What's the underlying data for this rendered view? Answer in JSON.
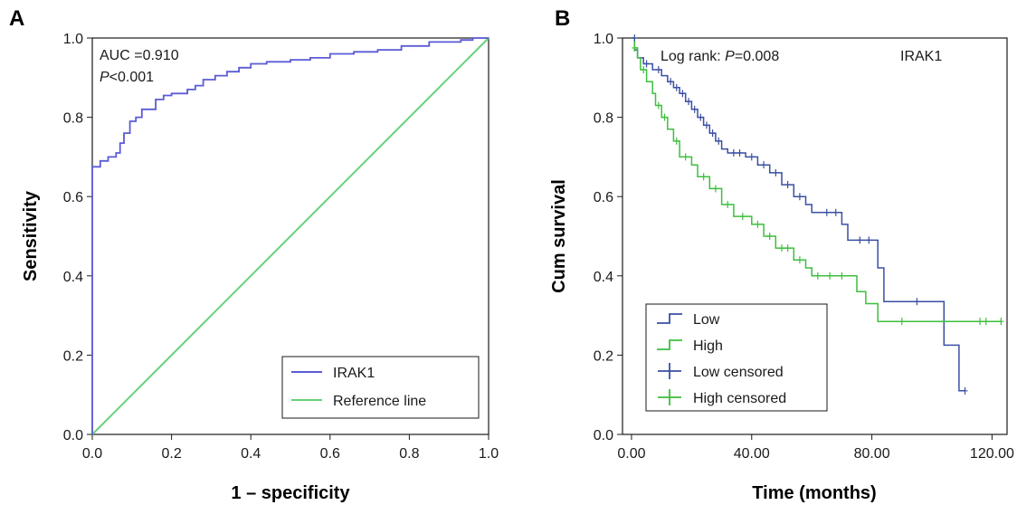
{
  "chart_data": [
    {
      "type": "line",
      "panel_label": "A",
      "xlabel": "1 – specificity",
      "ylabel": "Sensitivity",
      "xlim": [
        0,
        1
      ],
      "ylim": [
        0,
        1
      ],
      "xticks": [
        "0.0",
        "0.2",
        "0.4",
        "0.6",
        "0.8",
        "1.0"
      ],
      "yticks": [
        "0.0",
        "0.2",
        "0.4",
        "0.6",
        "0.8",
        "1.0"
      ],
      "annotations": {
        "auc": "AUC =0.910",
        "p_italic": "P",
        "p_rest": "<0.001"
      },
      "legend_position": "bottom-right",
      "series": [
        {
          "name": "IRAK1",
          "color": "#5b5bd6",
          "step": true,
          "points": [
            [
              0,
              0
            ],
            [
              0,
              0.675
            ],
            [
              0.02,
              0.675
            ],
            [
              0.02,
              0.69
            ],
            [
              0.04,
              0.69
            ],
            [
              0.04,
              0.7
            ],
            [
              0.06,
              0.7
            ],
            [
              0.06,
              0.71
            ],
            [
              0.07,
              0.71
            ],
            [
              0.07,
              0.735
            ],
            [
              0.08,
              0.735
            ],
            [
              0.08,
              0.76
            ],
            [
              0.095,
              0.76
            ],
            [
              0.095,
              0.79
            ],
            [
              0.11,
              0.79
            ],
            [
              0.11,
              0.8
            ],
            [
              0.125,
              0.8
            ],
            [
              0.125,
              0.82
            ],
            [
              0.16,
              0.82
            ],
            [
              0.16,
              0.845
            ],
            [
              0.18,
              0.845
            ],
            [
              0.18,
              0.855
            ],
            [
              0.2,
              0.855
            ],
            [
              0.2,
              0.86
            ],
            [
              0.24,
              0.86
            ],
            [
              0.24,
              0.87
            ],
            [
              0.26,
              0.87
            ],
            [
              0.26,
              0.88
            ],
            [
              0.28,
              0.88
            ],
            [
              0.28,
              0.895
            ],
            [
              0.31,
              0.895
            ],
            [
              0.31,
              0.905
            ],
            [
              0.34,
              0.905
            ],
            [
              0.34,
              0.915
            ],
            [
              0.37,
              0.915
            ],
            [
              0.37,
              0.925
            ],
            [
              0.4,
              0.925
            ],
            [
              0.4,
              0.935
            ],
            [
              0.44,
              0.935
            ],
            [
              0.44,
              0.94
            ],
            [
              0.5,
              0.94
            ],
            [
              0.5,
              0.945
            ],
            [
              0.55,
              0.945
            ],
            [
              0.55,
              0.95
            ],
            [
              0.6,
              0.95
            ],
            [
              0.6,
              0.96
            ],
            [
              0.66,
              0.96
            ],
            [
              0.66,
              0.965
            ],
            [
              0.72,
              0.965
            ],
            [
              0.72,
              0.97
            ],
            [
              0.78,
              0.97
            ],
            [
              0.78,
              0.98
            ],
            [
              0.85,
              0.98
            ],
            [
              0.85,
              0.99
            ],
            [
              0.93,
              0.99
            ],
            [
              0.93,
              0.995
            ],
            [
              0.96,
              0.995
            ],
            [
              0.96,
              1.0
            ],
            [
              1.0,
              1.0
            ]
          ]
        },
        {
          "name": "Reference line",
          "color": "#66d17a",
          "step": false,
          "points": [
            [
              0,
              0
            ],
            [
              1,
              1
            ]
          ]
        }
      ]
    },
    {
      "type": "line",
      "panel_label": "B",
      "xlabel": "Time (months)",
      "ylabel": "Cum survival",
      "xlim": [
        -3,
        125
      ],
      "ylim": [
        0,
        1
      ],
      "xticks": [
        {
          "value": 0,
          "label": "0.00"
        },
        {
          "value": 40,
          "label": "40.00"
        },
        {
          "value": 80,
          "label": "80.00"
        },
        {
          "value": 120,
          "label": "120.00"
        }
      ],
      "yticks": [
        "0.0",
        "0.2",
        "0.4",
        "0.6",
        "0.8",
        "1.0"
      ],
      "annotations": {
        "logrank_prefix": "Log rank: ",
        "p_italic": "P",
        "p_rest": "=0.008",
        "gene": "IRAK1"
      },
      "legend_position": "bottom-left",
      "legend": [
        "Low",
        "High",
        "Low censored",
        "High censored"
      ],
      "series": [
        {
          "name": "Low",
          "color": "#3b4fa3",
          "step": true,
          "points": [
            [
              0,
              1.0
            ],
            [
              1,
              1.0
            ],
            [
              1,
              0.97
            ],
            [
              2,
              0.97
            ],
            [
              2,
              0.95
            ],
            [
              4,
              0.95
            ],
            [
              4,
              0.935
            ],
            [
              7,
              0.935
            ],
            [
              7,
              0.92
            ],
            [
              10,
              0.92
            ],
            [
              10,
              0.905
            ],
            [
              12,
              0.905
            ],
            [
              12,
              0.89
            ],
            [
              14,
              0.89
            ],
            [
              14,
              0.875
            ],
            [
              16,
              0.875
            ],
            [
              16,
              0.86
            ],
            [
              18,
              0.86
            ],
            [
              18,
              0.84
            ],
            [
              20,
              0.84
            ],
            [
              20,
              0.82
            ],
            [
              22,
              0.82
            ],
            [
              22,
              0.8
            ],
            [
              24,
              0.8
            ],
            [
              24,
              0.78
            ],
            [
              26,
              0.78
            ],
            [
              26,
              0.76
            ],
            [
              28,
              0.76
            ],
            [
              28,
              0.74
            ],
            [
              30,
              0.74
            ],
            [
              30,
              0.72
            ],
            [
              32,
              0.72
            ],
            [
              32,
              0.71
            ],
            [
              38,
              0.71
            ],
            [
              38,
              0.7
            ],
            [
              42,
              0.7
            ],
            [
              42,
              0.68
            ],
            [
              46,
              0.68
            ],
            [
              46,
              0.66
            ],
            [
              50,
              0.66
            ],
            [
              50,
              0.63
            ],
            [
              54,
              0.63
            ],
            [
              54,
              0.6
            ],
            [
              58,
              0.6
            ],
            [
              58,
              0.58
            ],
            [
              60,
              0.58
            ],
            [
              60,
              0.56
            ],
            [
              70,
              0.56
            ],
            [
              70,
              0.53
            ],
            [
              72,
              0.53
            ],
            [
              72,
              0.49
            ],
            [
              82,
              0.49
            ],
            [
              82,
              0.42
            ],
            [
              84,
              0.42
            ],
            [
              84,
              0.335
            ],
            [
              104,
              0.335
            ],
            [
              104,
              0.225
            ],
            [
              109,
              0.225
            ],
            [
              109,
              0.11
            ],
            [
              111,
              0.11
            ]
          ]
        },
        {
          "name": "High",
          "color": "#3dbf3d",
          "step": true,
          "points": [
            [
              0,
              1.0
            ],
            [
              1,
              1.0
            ],
            [
              1,
              0.975
            ],
            [
              2,
              0.975
            ],
            [
              2,
              0.95
            ],
            [
              3,
              0.95
            ],
            [
              3,
              0.92
            ],
            [
              5,
              0.92
            ],
            [
              5,
              0.89
            ],
            [
              7,
              0.89
            ],
            [
              7,
              0.86
            ],
            [
              8,
              0.86
            ],
            [
              8,
              0.83
            ],
            [
              10,
              0.83
            ],
            [
              10,
              0.8
            ],
            [
              12,
              0.8
            ],
            [
              12,
              0.77
            ],
            [
              14,
              0.77
            ],
            [
              14,
              0.74
            ],
            [
              16,
              0.74
            ],
            [
              16,
              0.7
            ],
            [
              20,
              0.7
            ],
            [
              20,
              0.68
            ],
            [
              22,
              0.68
            ],
            [
              22,
              0.65
            ],
            [
              26,
              0.65
            ],
            [
              26,
              0.62
            ],
            [
              30,
              0.62
            ],
            [
              30,
              0.58
            ],
            [
              34,
              0.58
            ],
            [
              34,
              0.55
            ],
            [
              40,
              0.55
            ],
            [
              40,
              0.53
            ],
            [
              44,
              0.53
            ],
            [
              44,
              0.5
            ],
            [
              48,
              0.5
            ],
            [
              48,
              0.47
            ],
            [
              54,
              0.47
            ],
            [
              54,
              0.44
            ],
            [
              58,
              0.44
            ],
            [
              58,
              0.42
            ],
            [
              60,
              0.42
            ],
            [
              60,
              0.4
            ],
            [
              75,
              0.4
            ],
            [
              75,
              0.36
            ],
            [
              78,
              0.36
            ],
            [
              78,
              0.33
            ],
            [
              82,
              0.33
            ],
            [
              82,
              0.285
            ],
            [
              123,
              0.285
            ]
          ]
        },
        {
          "name": "Low censored",
          "color": "#3b4fa3",
          "points": [
            [
              1,
              1.0
            ],
            [
              5,
              0.935
            ],
            [
              9,
              0.92
            ],
            [
              13,
              0.89
            ],
            [
              15,
              0.875
            ],
            [
              17,
              0.86
            ],
            [
              19,
              0.84
            ],
            [
              21,
              0.82
            ],
            [
              23,
              0.8
            ],
            [
              25,
              0.78
            ],
            [
              27,
              0.76
            ],
            [
              29,
              0.74
            ],
            [
              34,
              0.71
            ],
            [
              36,
              0.71
            ],
            [
              40,
              0.7
            ],
            [
              44,
              0.68
            ],
            [
              48,
              0.66
            ],
            [
              52,
              0.63
            ],
            [
              56,
              0.6
            ],
            [
              65,
              0.56
            ],
            [
              68,
              0.56
            ],
            [
              76,
              0.49
            ],
            [
              79,
              0.49
            ],
            [
              95,
              0.335
            ],
            [
              111,
              0.11
            ]
          ]
        },
        {
          "name": "High censored",
          "color": "#3dbf3d",
          "points": [
            [
              1,
              0.975
            ],
            [
              4,
              0.92
            ],
            [
              9,
              0.83
            ],
            [
              11,
              0.8
            ],
            [
              15,
              0.74
            ],
            [
              18,
              0.7
            ],
            [
              24,
              0.65
            ],
            [
              28,
              0.62
            ],
            [
              32,
              0.58
            ],
            [
              37,
              0.55
            ],
            [
              42,
              0.53
            ],
            [
              46,
              0.5
            ],
            [
              50,
              0.47
            ],
            [
              52,
              0.47
            ],
            [
              56,
              0.44
            ],
            [
              62,
              0.4
            ],
            [
              66,
              0.4
            ],
            [
              70,
              0.4
            ],
            [
              90,
              0.285
            ],
            [
              116,
              0.285
            ],
            [
              118,
              0.285
            ],
            [
              123,
              0.285
            ]
          ]
        }
      ]
    }
  ]
}
